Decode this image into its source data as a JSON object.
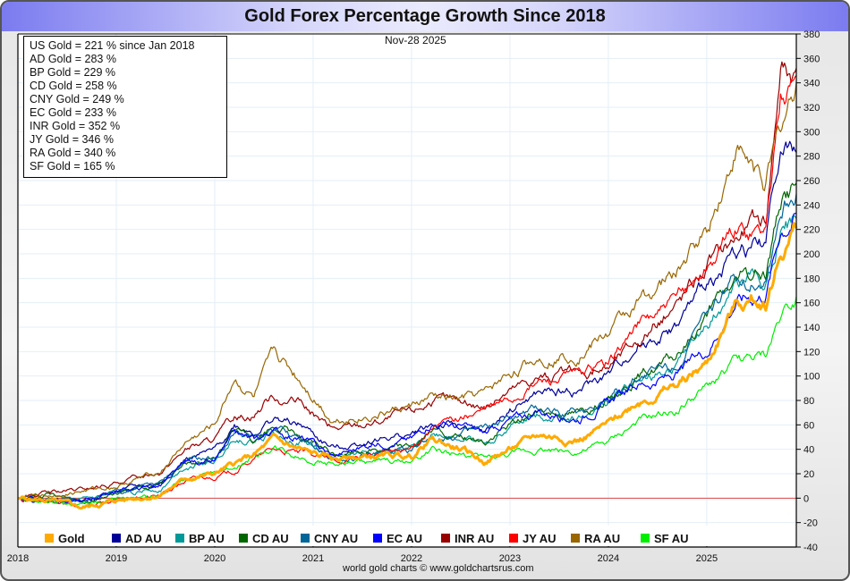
{
  "chart_data": {
    "type": "line",
    "title": "Gold Forex Percentage Growth Since 2018",
    "date_label": "Nov-28  2025",
    "credit": "world gold charts © www.goldchartsrus.com",
    "xlabel": "",
    "ylabel": "",
    "xlim": [
      2018.0,
      2025.91
    ],
    "ylim": [
      -40,
      380
    ],
    "x_ticks": [
      "2018",
      "2019",
      "2020",
      "2021",
      "2022",
      "2023",
      "2024",
      "2025"
    ],
    "y_ticks": [
      "-40",
      "-20",
      "0",
      "20",
      "40",
      "60",
      "80",
      "100",
      "120",
      "140",
      "160",
      "180",
      "200",
      "220",
      "240",
      "260",
      "280",
      "300",
      "320",
      "340",
      "360",
      "380"
    ],
    "grid": true,
    "legend_position": "bottom",
    "summary_lines": [
      "US Gold = 221 % since Jan 2018",
      "AD Gold = 283 %",
      "BP Gold = 229 %",
      "CD Gold = 258 %",
      "CNY Gold = 249 %",
      "EC Gold = 233 %",
      "INR Gold = 352 %",
      "JY Gold = 346 %",
      "RA Gold = 340 %",
      "SF Gold = 165 %"
    ],
    "series": [
      {
        "name": "Gold",
        "color": "#ffaa00",
        "width": 3,
        "x": [
          2018.0,
          2018.3,
          2018.65,
          2019.0,
          2019.45,
          2019.7,
          2020.0,
          2020.2,
          2020.4,
          2020.6,
          2020.9,
          2021.2,
          2021.6,
          2022.0,
          2022.2,
          2022.5,
          2022.75,
          2023.0,
          2023.3,
          2023.7,
          2024.0,
          2024.3,
          2024.7,
          2025.0,
          2025.3,
          2025.6,
          2025.75,
          2025.91
        ],
        "y": [
          0,
          -2,
          -8,
          -2,
          3,
          16,
          20,
          28,
          35,
          48,
          38,
          32,
          34,
          34,
          48,
          40,
          30,
          40,
          52,
          48,
          60,
          80,
          92,
          110,
          160,
          162,
          200,
          221
        ]
      },
      {
        "name": "AD AU",
        "color": "#000099",
        "width": 1.2,
        "x": [
          2018.0,
          2018.3,
          2018.65,
          2019.0,
          2019.45,
          2019.7,
          2020.0,
          2020.2,
          2020.4,
          2020.6,
          2020.9,
          2021.2,
          2021.6,
          2022.0,
          2022.2,
          2022.5,
          2022.75,
          2023.0,
          2023.3,
          2023.7,
          2024.0,
          2024.3,
          2024.7,
          2025.0,
          2025.3,
          2025.6,
          2025.75,
          2025.91
        ],
        "y": [
          0,
          0,
          -2,
          6,
          12,
          32,
          38,
          60,
          55,
          65,
          58,
          40,
          48,
          52,
          60,
          58,
          52,
          72,
          85,
          88,
          100,
          125,
          140,
          175,
          200,
          210,
          290,
          283
        ]
      },
      {
        "name": "BP AU",
        "color": "#009999",
        "width": 1.2,
        "x": [
          2018.0,
          2018.3,
          2018.65,
          2019.0,
          2019.45,
          2019.7,
          2020.0,
          2020.2,
          2020.4,
          2020.6,
          2020.9,
          2021.2,
          2021.6,
          2022.0,
          2022.2,
          2022.5,
          2022.75,
          2023.0,
          2023.3,
          2023.7,
          2024.0,
          2024.3,
          2024.7,
          2025.0,
          2025.3,
          2025.6,
          2025.75,
          2025.91
        ],
        "y": [
          0,
          -2,
          -4,
          4,
          8,
          26,
          30,
          50,
          46,
          55,
          46,
          33,
          38,
          40,
          52,
          50,
          44,
          58,
          68,
          66,
          78,
          95,
          108,
          138,
          175,
          182,
          220,
          229
        ]
      },
      {
        "name": "CD AU",
        "color": "#006600",
        "width": 1.2,
        "x": [
          2018.0,
          2018.3,
          2018.65,
          2019.0,
          2019.45,
          2019.7,
          2020.0,
          2020.2,
          2020.4,
          2020.6,
          2020.9,
          2021.2,
          2021.6,
          2022.0,
          2022.2,
          2022.5,
          2022.75,
          2023.0,
          2023.3,
          2023.7,
          2024.0,
          2024.3,
          2024.7,
          2025.0,
          2025.3,
          2025.6,
          2025.75,
          2025.91
        ],
        "y": [
          0,
          2,
          -2,
          5,
          10,
          28,
          32,
          55,
          50,
          58,
          50,
          35,
          40,
          42,
          55,
          48,
          45,
          60,
          72,
          70,
          82,
          100,
          115,
          150,
          178,
          185,
          245,
          258
        ]
      },
      {
        "name": "CNY AU",
        "color": "#006699",
        "width": 1.2,
        "x": [
          2018.0,
          2018.3,
          2018.65,
          2019.0,
          2019.45,
          2019.7,
          2020.0,
          2020.2,
          2020.4,
          2020.6,
          2020.9,
          2021.2,
          2021.6,
          2022.0,
          2022.2,
          2022.5,
          2022.75,
          2023.0,
          2023.3,
          2023.7,
          2024.0,
          2024.3,
          2024.7,
          2025.0,
          2025.3,
          2025.6,
          2025.75,
          2025.91
        ],
        "y": [
          0,
          -3,
          -2,
          5,
          12,
          30,
          32,
          54,
          48,
          56,
          46,
          32,
          36,
          38,
          50,
          52,
          55,
          64,
          72,
          70,
          82,
          100,
          112,
          148,
          180,
          182,
          236,
          249
        ]
      },
      {
        "name": "EC AU",
        "color": "#0000ff",
        "width": 1.2,
        "x": [
          2018.0,
          2018.3,
          2018.65,
          2019.0,
          2019.45,
          2019.7,
          2020.0,
          2020.2,
          2020.4,
          2020.6,
          2020.9,
          2021.2,
          2021.6,
          2022.0,
          2022.2,
          2022.5,
          2022.75,
          2023.0,
          2023.3,
          2023.7,
          2024.0,
          2024.3,
          2024.7,
          2025.0,
          2025.3,
          2025.6,
          2025.75,
          2025.91
        ],
        "y": [
          0,
          -1,
          -3,
          6,
          10,
          28,
          30,
          52,
          46,
          55,
          48,
          34,
          44,
          48,
          62,
          58,
          52,
          64,
          70,
          66,
          78,
          92,
          100,
          120,
          162,
          168,
          220,
          233
        ]
      },
      {
        "name": "INR AU",
        "color": "#990000",
        "width": 1.2,
        "x": [
          2018.0,
          2018.3,
          2018.65,
          2019.0,
          2019.45,
          2019.7,
          2020.0,
          2020.2,
          2020.4,
          2020.6,
          2020.9,
          2021.2,
          2021.6,
          2022.0,
          2022.2,
          2022.5,
          2022.75,
          2023.0,
          2023.3,
          2023.7,
          2024.0,
          2024.3,
          2024.7,
          2025.0,
          2025.3,
          2025.6,
          2025.75,
          2025.91
        ],
        "y": [
          0,
          4,
          6,
          12,
          22,
          40,
          48,
          65,
          70,
          85,
          75,
          55,
          62,
          70,
          80,
          78,
          75,
          88,
          100,
          100,
          108,
          130,
          160,
          190,
          215,
          230,
          355,
          352
        ]
      },
      {
        "name": "JY AU",
        "color": "#ff0000",
        "width": 1.2,
        "x": [
          2018.0,
          2018.3,
          2018.65,
          2019.0,
          2019.45,
          2019.7,
          2020.0,
          2020.2,
          2020.4,
          2020.6,
          2020.9,
          2021.2,
          2021.6,
          2022.0,
          2022.2,
          2022.5,
          2022.75,
          2023.0,
          2023.3,
          2023.7,
          2024.0,
          2024.3,
          2024.7,
          2025.0,
          2025.3,
          2025.6,
          2025.75,
          2025.91
        ],
        "y": [
          0,
          -4,
          -6,
          -2,
          2,
          14,
          18,
          22,
          32,
          40,
          36,
          30,
          35,
          40,
          58,
          65,
          72,
          80,
          95,
          100,
          110,
          142,
          160,
          190,
          220,
          222,
          325,
          346
        ]
      },
      {
        "name": "RA AU",
        "color": "#996600",
        "width": 1.2,
        "x": [
          2018.0,
          2018.3,
          2018.65,
          2019.0,
          2019.45,
          2019.7,
          2020.0,
          2020.2,
          2020.4,
          2020.6,
          2020.9,
          2021.2,
          2021.6,
          2022.0,
          2022.2,
          2022.5,
          2022.75,
          2023.0,
          2023.3,
          2023.7,
          2024.0,
          2024.3,
          2024.7,
          2025.0,
          2025.3,
          2025.6,
          2025.75,
          2025.91
        ],
        "y": [
          0,
          2,
          6,
          10,
          22,
          45,
          60,
          98,
          82,
          118,
          95,
          65,
          68,
          75,
          82,
          80,
          85,
          102,
          115,
          120,
          135,
          160,
          185,
          220,
          285,
          260,
          300,
          340
        ]
      },
      {
        "name": "SF AU",
        "color": "#00ee00",
        "width": 1.2,
        "x": [
          2018.0,
          2018.3,
          2018.65,
          2019.0,
          2019.45,
          2019.7,
          2020.0,
          2020.2,
          2020.4,
          2020.6,
          2020.9,
          2021.2,
          2021.6,
          2022.0,
          2022.2,
          2022.5,
          2022.75,
          2023.0,
          2023.3,
          2023.7,
          2024.0,
          2024.3,
          2024.7,
          2025.0,
          2025.3,
          2025.6,
          2025.75,
          2025.91
        ],
        "y": [
          0,
          -3,
          -6,
          0,
          4,
          16,
          20,
          26,
          34,
          42,
          34,
          28,
          30,
          30,
          40,
          35,
          32,
          35,
          40,
          38,
          45,
          62,
          72,
          90,
          112,
          115,
          150,
          165
        ]
      }
    ]
  }
}
